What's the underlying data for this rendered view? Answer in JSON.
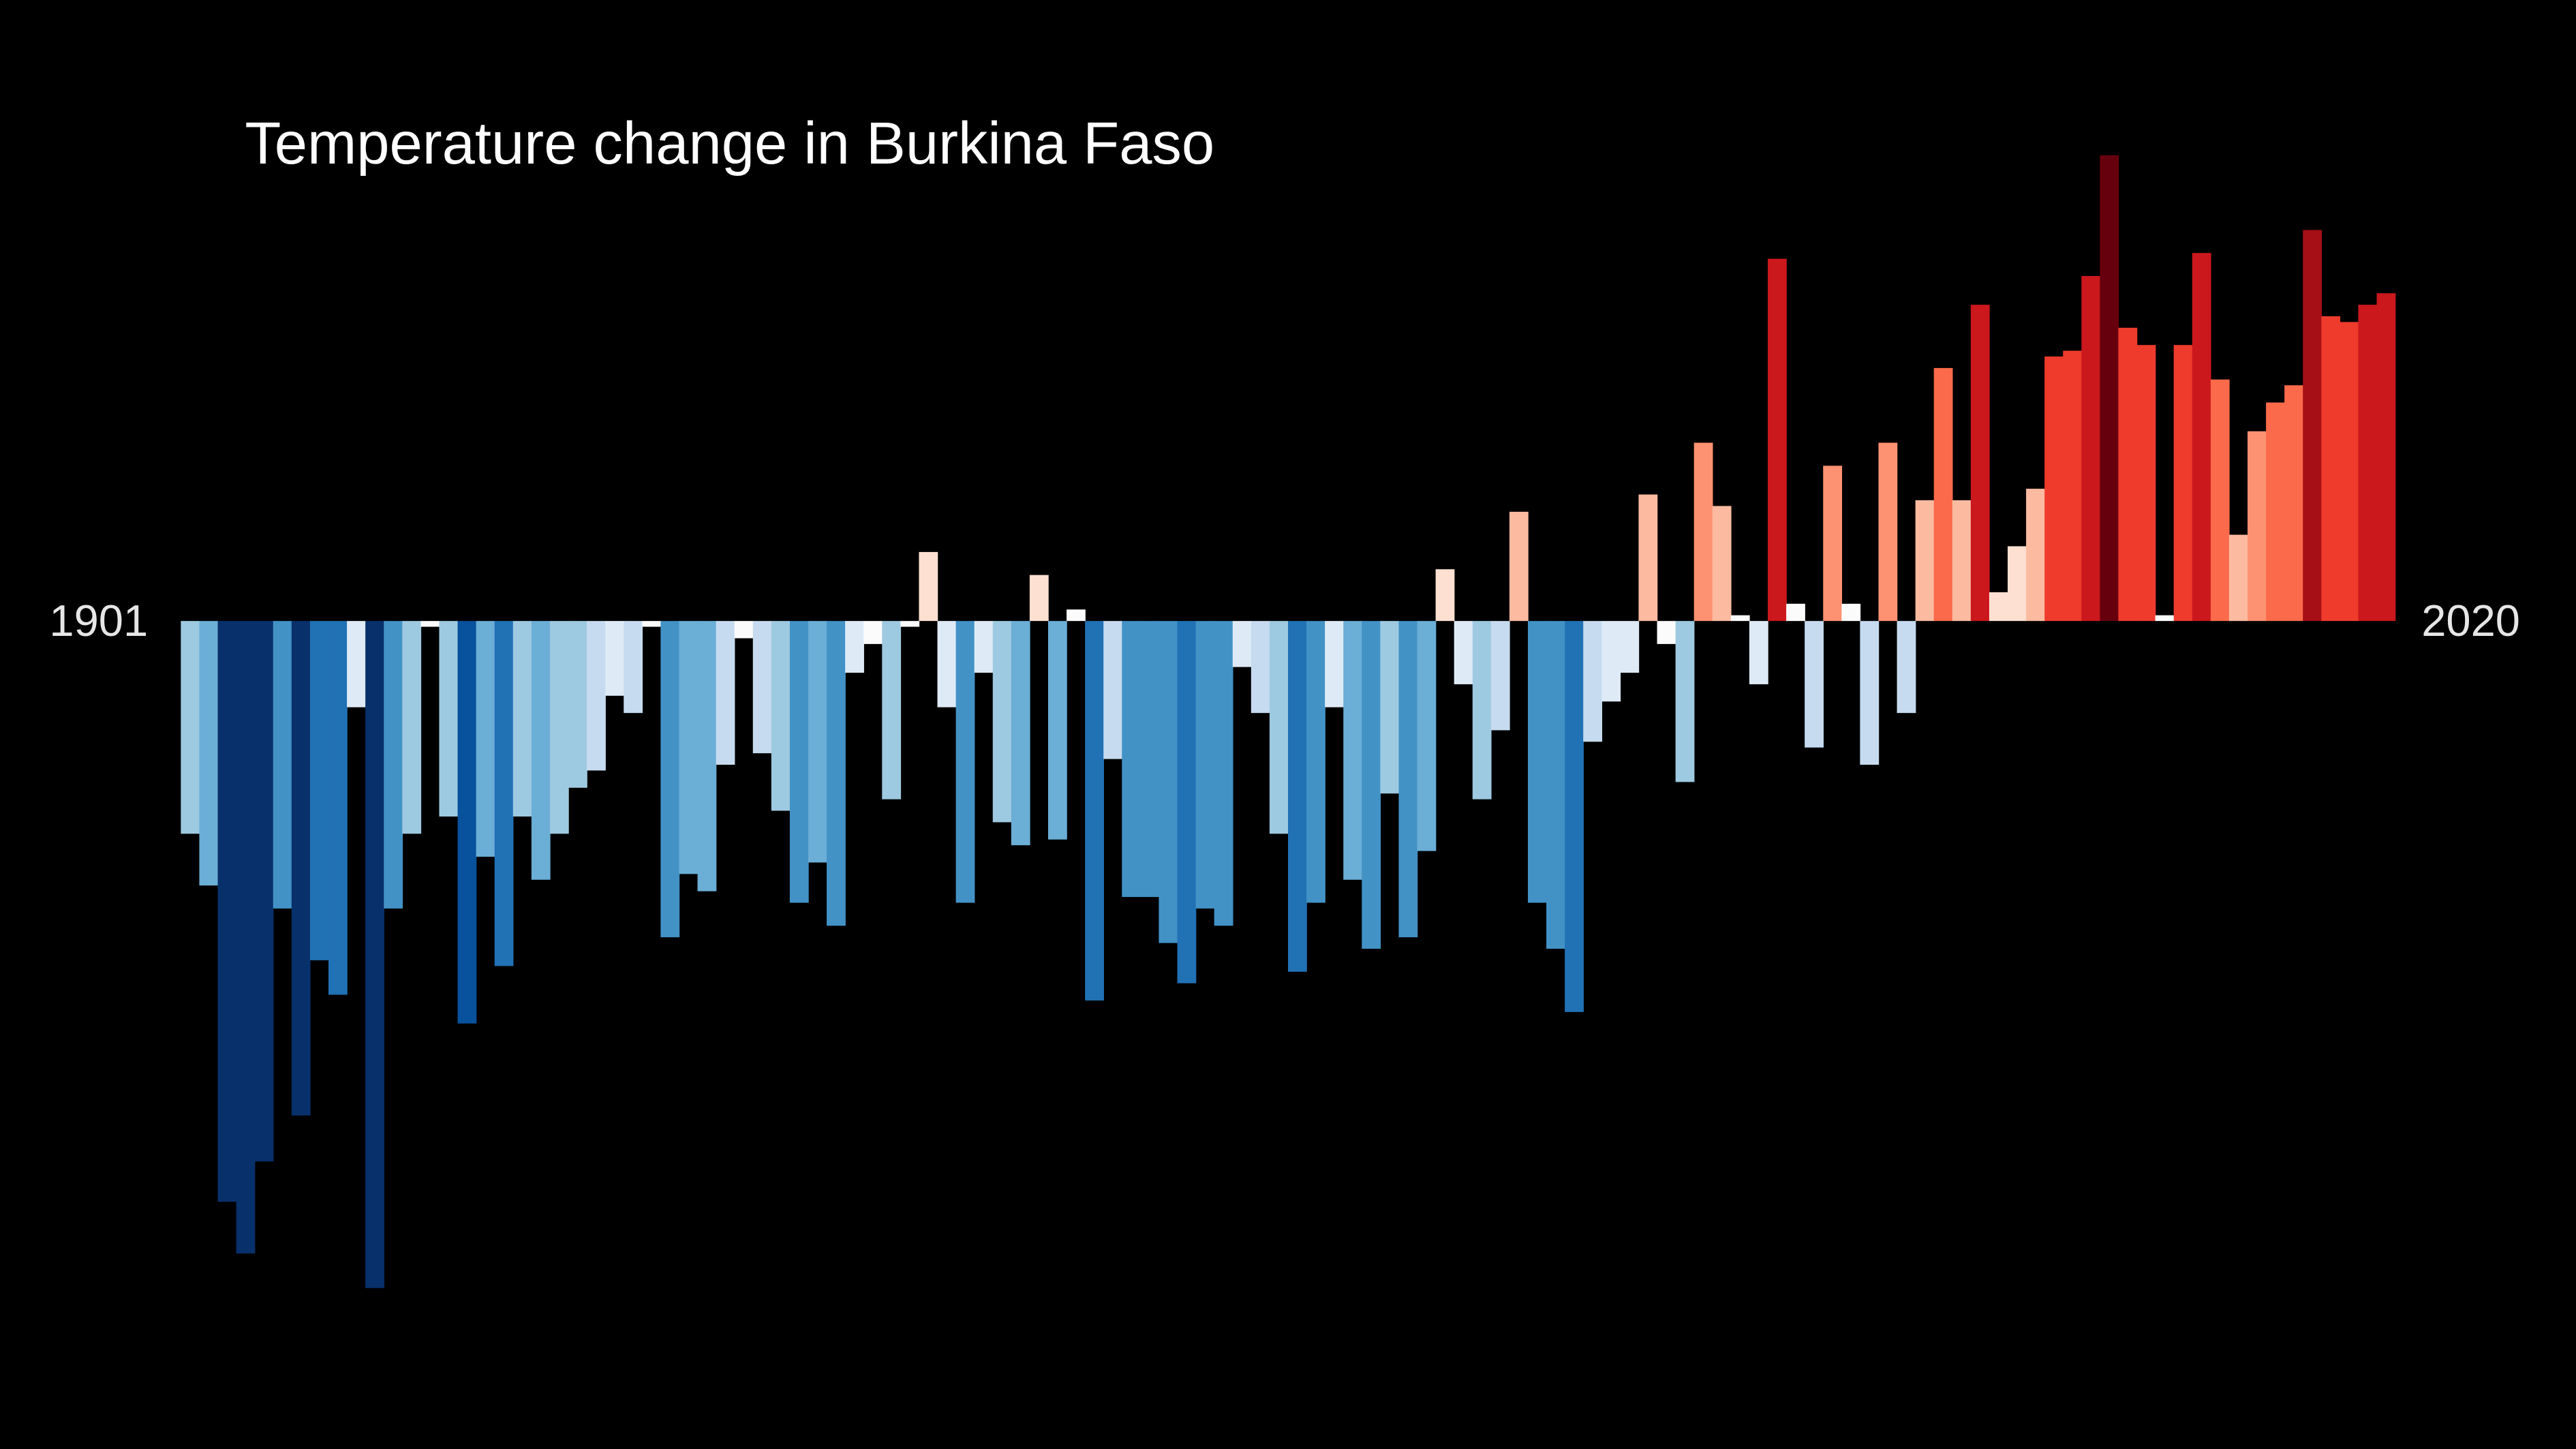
{
  "chart_data": {
    "type": "bar",
    "title": "Temperature change in Burkina Faso",
    "categories": [
      "1901",
      null,
      null,
      null,
      null,
      null,
      null,
      null,
      null,
      null,
      null,
      null,
      null,
      null,
      null,
      null,
      null,
      null,
      null,
      null,
      null,
      null,
      null,
      null,
      null,
      null,
      null,
      null,
      null,
      null,
      null,
      null,
      null,
      null,
      null,
      null,
      null,
      null,
      null,
      null,
      null,
      null,
      null,
      null,
      null,
      null,
      null,
      null,
      null,
      null,
      null,
      null,
      null,
      null,
      null,
      null,
      null,
      null,
      null,
      null,
      null,
      null,
      null,
      null,
      null,
      null,
      null,
      null,
      null,
      null,
      null,
      null,
      null,
      null,
      null,
      null,
      null,
      null,
      null,
      null,
      null,
      null,
      null,
      null,
      null,
      null,
      null,
      null,
      null,
      null,
      null,
      null,
      null,
      null,
      null,
      null,
      null,
      null,
      null,
      null,
      null,
      null,
      null,
      null,
      null,
      null,
      null,
      null,
      null,
      null,
      null,
      null,
      null,
      null,
      null,
      null,
      null,
      null,
      null,
      "2020"
    ],
    "values": [
      -0.37,
      -0.46,
      -1.01,
      -1.1,
      -0.94,
      -0.5,
      -0.86,
      -0.59,
      -0.65,
      -0.15,
      -1.16,
      -0.5,
      -0.37,
      -0.01,
      -0.34,
      -0.7,
      -0.41,
      -0.6,
      -0.34,
      -0.45,
      -0.37,
      -0.29,
      -0.26,
      -0.13,
      -0.16,
      -0.01,
      -0.55,
      -0.44,
      -0.47,
      -0.25,
      -0.03,
      -0.23,
      -0.33,
      -0.49,
      -0.42,
      -0.53,
      -0.09,
      -0.04,
      -0.31,
      -0.01,
      0.12,
      -0.15,
      -0.49,
      -0.09,
      -0.35,
      -0.39,
      0.08,
      -0.38,
      0.02,
      -0.66,
      -0.24,
      -0.48,
      -0.48,
      -0.56,
      -0.63,
      -0.5,
      -0.53,
      -0.08,
      -0.16,
      -0.37,
      -0.61,
      -0.49,
      -0.15,
      -0.45,
      -0.57,
      -0.3,
      -0.55,
      -0.4,
      0.09,
      -0.11,
      -0.31,
      -0.19,
      0.19,
      -0.49,
      -0.57,
      -0.68,
      -0.21,
      -0.14,
      -0.09,
      0.22,
      -0.04,
      -0.28,
      0.31,
      0.2,
      0.01,
      -0.11,
      0.63,
      0.03,
      -0.22,
      0.27,
      0.03,
      -0.25,
      0.31,
      -0.16,
      0.21,
      0.44,
      0.21,
      0.55,
      0.05,
      0.13,
      0.23,
      0.46,
      0.47,
      0.6,
      0.81,
      0.51,
      0.48,
      0.01,
      0.48,
      0.64,
      0.42,
      0.15,
      0.33,
      0.38,
      0.41,
      0.68,
      0.53,
      0.52,
      0.55,
      0.57
    ],
    "ylim": [
      -1.2,
      0.9
    ],
    "colormap": [
      "#08306b",
      "#08519c",
      "#2171b5",
      "#4292c6",
      "#6baed6",
      "#9ecae1",
      "#c6dbef",
      "#deebf7",
      "#fbfbfb",
      "#fee0d2",
      "#fcbba1",
      "#fc9272",
      "#fb6a4a",
      "#ef3b2c",
      "#cb181d",
      "#a50f15",
      "#67000d"
    ],
    "color_range": [
      -0.85,
      0.8
    ]
  }
}
